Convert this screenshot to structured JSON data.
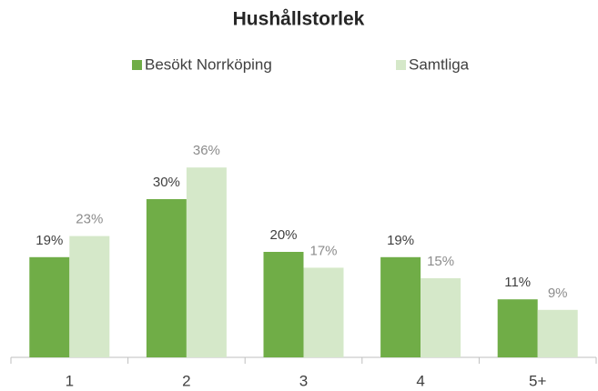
{
  "chart_data": {
    "type": "bar",
    "title": "Hushållstorlek",
    "categories": [
      "1",
      "2",
      "3",
      "4",
      "5+"
    ],
    "series": [
      {
        "name": "Besökt Norrköping",
        "color": "#70ad47",
        "values": [
          19,
          30,
          20,
          19,
          11
        ],
        "value_labels": [
          "19%",
          "30%",
          "20%",
          "19%",
          "11%"
        ]
      },
      {
        "name": "Samtliga",
        "color": "#d5e8c9",
        "values": [
          23,
          36,
          17,
          15,
          9
        ],
        "value_labels": [
          "23%",
          "36%",
          "17%",
          "15%",
          "9%"
        ]
      }
    ],
    "legend": "top"
  }
}
